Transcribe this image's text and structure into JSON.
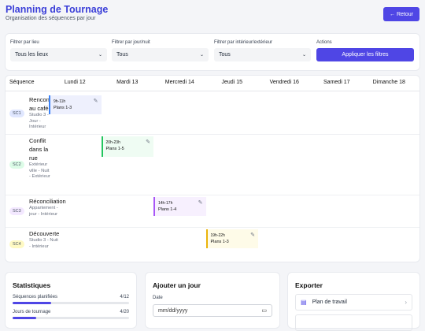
{
  "header": {
    "title": "Planning de Tournage",
    "subtitle": "Organisation des séquences par jour",
    "back_button": "← Retour"
  },
  "filters": [
    {
      "label": "Filtrer par lieu",
      "value": "Tous les lieux"
    },
    {
      "label": "Filtrer par jour/nuit",
      "value": "Tous"
    },
    {
      "label": "Filtrer par intérieur/extérieur",
      "value": "Tous"
    }
  ],
  "actions": {
    "label": "Actions",
    "button": "Appliquer les filtres"
  },
  "schedule": {
    "columns": [
      "Séquence",
      "Lundi 12",
      "Mardi 13",
      "Mercredi 14",
      "Jeudi 15",
      "Vendredi 16",
      "Samedi 17",
      "Dimanche 18"
    ],
    "rows": [
      {
        "code": "SC1",
        "title": "Rencontre au café",
        "details": "Studio 3 - Jour - Intérieur",
        "color": "#3b82f6",
        "bg": "#eef0fd",
        "badge_bg": "#e0e7ff",
        "cells": [
          {
            "time": "9h-11h",
            "shots": "Plans 1-3"
          },
          null,
          null,
          null,
          null,
          null,
          null
        ]
      },
      {
        "code": "SC2",
        "title": "Conflit dans la rue",
        "details": "Extérieur ville - Nuit - Extérieur",
        "color": "#22c55e",
        "bg": "#effcf3",
        "badge_bg": "#dcfce7",
        "cells": [
          null,
          {
            "time": "20h-23h",
            "shots": "Plans 1-5"
          },
          null,
          null,
          null,
          null,
          null
        ]
      },
      {
        "code": "SC3",
        "title": "Réconciliation",
        "details": "Appartement - jour - Intérieur",
        "color": "#a855f7",
        "bg": "#f7f0fe",
        "badge_bg": "#f3e8ff",
        "cells": [
          null,
          null,
          {
            "time": "14h-17h",
            "shots": "Plans 1-4"
          },
          null,
          null,
          null,
          null
        ]
      },
      {
        "code": "SC4",
        "title": "Découverte",
        "details": "Studio 3 - Nuit - Intérieur",
        "color": "#eab308",
        "bg": "#fefbe8",
        "badge_bg": "#fef9c3",
        "cells": [
          null,
          null,
          null,
          {
            "time": "19h-22h",
            "shots": "Plans 1-3"
          },
          null,
          null,
          null
        ]
      }
    ]
  },
  "stats": {
    "title": "Statistiques",
    "items": [
      {
        "label": "Séquences planifiées",
        "text": "4/12",
        "value": 4,
        "max": 12
      },
      {
        "label": "Jours de tournage",
        "text": "4/20",
        "value": 4,
        "max": 20
      }
    ]
  },
  "add_day": {
    "title": "Ajouter un jour",
    "date_label": "Date",
    "placeholder": "mm/dd/yyyy"
  },
  "export": {
    "title": "Exporter",
    "items": [
      "Plan de travail"
    ]
  }
}
